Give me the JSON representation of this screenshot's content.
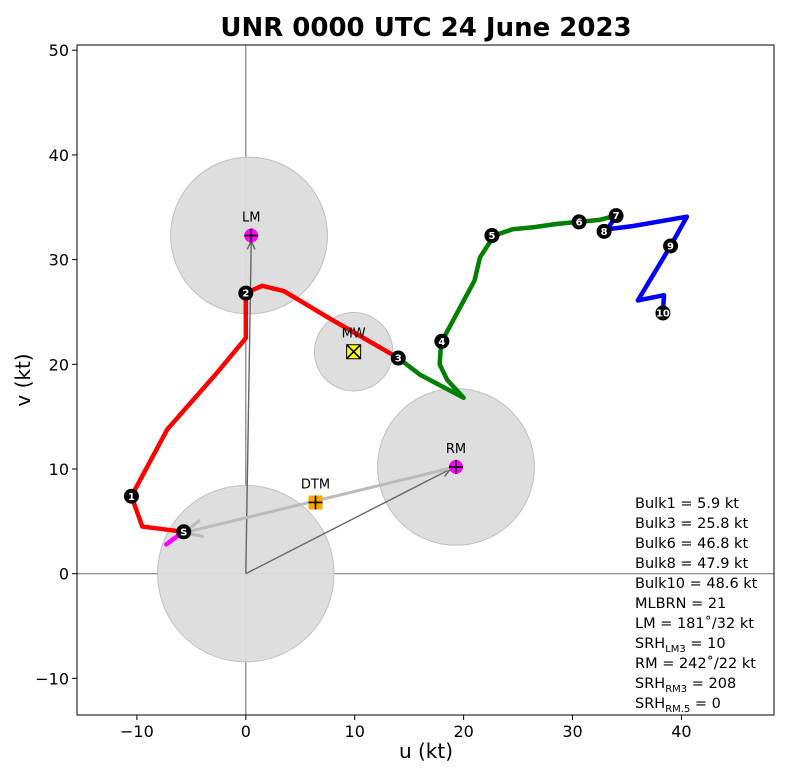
{
  "chart_data": {
    "type": "hodograph",
    "title": "UNR 0000 UTC 24 June 2023",
    "xlabel": "u (kt)",
    "ylabel": "v (kt)",
    "xlim": [
      -15.5,
      48.5
    ],
    "ylim": [
      -13.5,
      50.5
    ],
    "xticks": [
      -10,
      0,
      10,
      20,
      30,
      40
    ],
    "yticks": [
      -10,
      0,
      10,
      20,
      30,
      40,
      50
    ],
    "tick_labels_x": [
      "−10",
      "0",
      "10",
      "20",
      "30",
      "40"
    ],
    "tick_labels_y": [
      "−10",
      "0",
      "10",
      "20",
      "30",
      "40",
      "50"
    ],
    "grid": false,
    "segments": [
      {
        "color": "#ff00ff",
        "points": [
          [
            -7.3,
            2.8
          ],
          [
            -6.8,
            3.2
          ],
          [
            -5.7,
            4.0
          ]
        ]
      },
      {
        "color": "#ff0000",
        "points": [
          [
            -5.7,
            4.0
          ],
          [
            -9.5,
            4.5
          ],
          [
            -10.5,
            7.4
          ],
          [
            -7.2,
            13.8
          ],
          [
            -2.8,
            19.0
          ],
          [
            0.0,
            22.5
          ],
          [
            0.0,
            26.8
          ],
          [
            1.5,
            27.5
          ],
          [
            3.5,
            27.0
          ],
          [
            7.5,
            24.5
          ],
          [
            14.0,
            20.6
          ]
        ]
      },
      {
        "color": "#008000",
        "points": [
          [
            14.0,
            20.6
          ],
          [
            16.0,
            19.0
          ],
          [
            20.0,
            16.8
          ],
          [
            18.5,
            18.5
          ],
          [
            17.8,
            20.0
          ],
          [
            17.9,
            21.5
          ],
          [
            18.0,
            22.2
          ],
          [
            21.0,
            28.0
          ],
          [
            21.5,
            30.2
          ],
          [
            22.8,
            32.3
          ],
          [
            24.5,
            32.9
          ],
          [
            26.5,
            33.1
          ],
          [
            28.5,
            33.4
          ],
          [
            30.5,
            33.6
          ],
          [
            32.5,
            33.8
          ],
          [
            34.0,
            34.2
          ]
        ]
      },
      {
        "color": "#0000ff",
        "points": [
          [
            34.0,
            34.2
          ],
          [
            33.2,
            32.9
          ],
          [
            35.5,
            33.2
          ],
          [
            40.5,
            34.1
          ],
          [
            39.0,
            31.3
          ],
          [
            36.0,
            26.1
          ],
          [
            38.4,
            26.6
          ],
          [
            38.3,
            24.9
          ]
        ]
      }
    ],
    "height_markers": [
      {
        "label": "S",
        "u": -5.7,
        "v": 4.0
      },
      {
        "label": "1",
        "u": -10.5,
        "v": 7.4
      },
      {
        "label": "2",
        "u": 0.0,
        "v": 26.8
      },
      {
        "label": "3",
        "u": 14.0,
        "v": 20.6
      },
      {
        "label": "4",
        "u": 18.0,
        "v": 22.2
      },
      {
        "label": "5",
        "u": 22.6,
        "v": 32.3
      },
      {
        "label": "6",
        "u": 30.6,
        "v": 33.6
      },
      {
        "label": "7",
        "u": 34.0,
        "v": 34.2
      },
      {
        "label": "8",
        "u": 32.9,
        "v": 32.7
      },
      {
        "label": "9",
        "u": 39.0,
        "v": 31.3
      },
      {
        "label": "10",
        "u": 38.3,
        "v": 24.9
      }
    ],
    "circles": [
      {
        "name": "origin",
        "u": 0.0,
        "v": 0.0,
        "r": 8.1
      },
      {
        "name": "lm",
        "u": 0.3,
        "v": 32.3,
        "r": 7.2
      },
      {
        "name": "mw",
        "u": 9.9,
        "v": 21.2,
        "r": 3.6
      },
      {
        "name": "rm",
        "u": 19.3,
        "v": 10.2,
        "r": 7.2
      }
    ],
    "vectors": [
      {
        "name": "vector-lm",
        "color": "#666666",
        "from": [
          0,
          0
        ],
        "to": [
          0.5,
          31.8
        ]
      },
      {
        "name": "vector-rm",
        "color": "#666666",
        "from": [
          0,
          0
        ],
        "to": [
          18.8,
          10.0
        ]
      },
      {
        "name": "vector-surface",
        "color": "#bbbbbb",
        "from": [
          19.3,
          10.2
        ],
        "to": [
          -5.7,
          3.9
        ]
      }
    ],
    "points": [
      {
        "name": "lm",
        "label": "LM",
        "u": 0.5,
        "v": 32.3,
        "marker": "circle-plus",
        "color": "#ff00ff"
      },
      {
        "name": "mw",
        "label": "MW",
        "u": 9.9,
        "v": 21.2,
        "marker": "square-x",
        "color": "#ffff00"
      },
      {
        "name": "rm",
        "label": "RM",
        "u": 19.3,
        "v": 10.2,
        "marker": "circle-plus",
        "color": "#ff00ff"
      },
      {
        "name": "dtm",
        "label": "DTM",
        "u": 6.4,
        "v": 6.8,
        "marker": "square-plus",
        "color": "#ffa500"
      }
    ],
    "stats": [
      {
        "name": "bulk1",
        "text": "Bulk1 = 5.9 kt",
        "color": "#000000"
      },
      {
        "name": "bulk3",
        "text": "Bulk3 = 25.8 kt",
        "color": "#000000"
      },
      {
        "name": "bulk6",
        "text": "Bulk6 = 46.8 kt",
        "color": "#000000"
      },
      {
        "name": "bulk8",
        "text": "Bulk8 = 47.9 kt",
        "color": "#000000"
      },
      {
        "name": "bulk10",
        "text": "Bulk10 = 48.6 kt",
        "color": "#000000"
      },
      {
        "name": "mlbrn",
        "text": "MLBRN = 21",
        "color": "#ff00ff"
      },
      {
        "name": "lm",
        "text": "LM = 181˚/32 kt",
        "color": "#000000"
      },
      {
        "name": "srh-lm3",
        "main": "SRH",
        "sub": "LM3",
        "rest": " = 10",
        "color": "#000000"
      },
      {
        "name": "rm",
        "text": "RM = 242˚/22 kt",
        "color": "#000000"
      },
      {
        "name": "srh-rm3",
        "main": "SRH",
        "sub": "RM3",
        "rest": " = 208",
        "color": "#000000"
      },
      {
        "name": "srh-rm5",
        "main": "SRH",
        "sub": "RM.5",
        "rest": " = 0",
        "color": "#000000"
      }
    ]
  }
}
